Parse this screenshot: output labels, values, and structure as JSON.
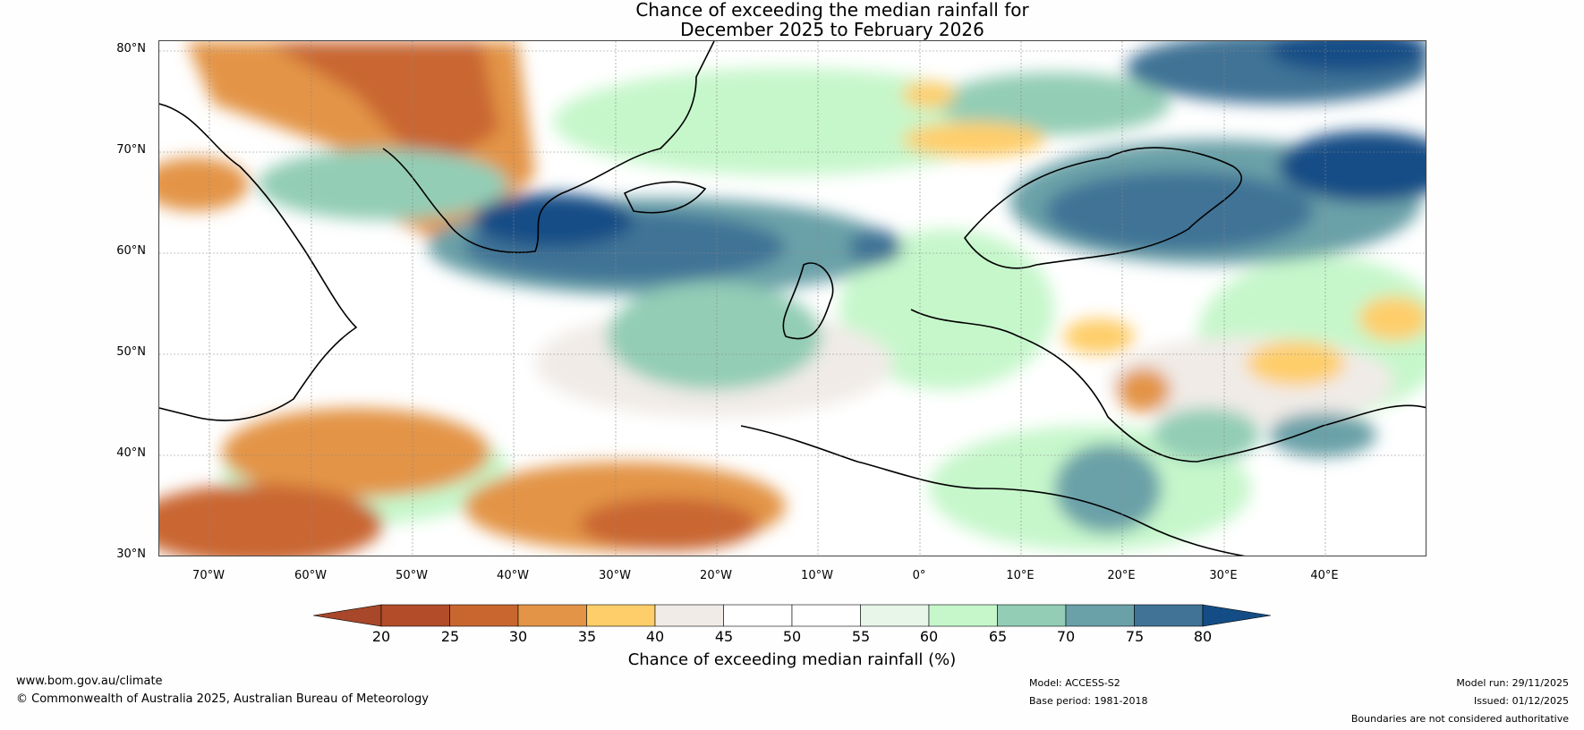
{
  "title": {
    "line1": "Chance of exceeding the median rainfall for",
    "line2": "December 2025 to February 2026"
  },
  "map": {
    "latitude_labels": [
      "80°N",
      "70°N",
      "60°N",
      "50°N",
      "40°N",
      "30°N"
    ],
    "longitude_labels": [
      "70°W",
      "60°W",
      "50°W",
      "40°W",
      "30°W",
      "20°W",
      "10°W",
      "0°",
      "10°E",
      "20°E",
      "30°E",
      "40°E"
    ],
    "extent": {
      "lon_min": -75,
      "lon_max": 50,
      "lat_min": 30,
      "lat_max": 81
    }
  },
  "colorbar": {
    "ticks": [
      "20",
      "25",
      "30",
      "35",
      "40",
      "45",
      "50",
      "55",
      "60",
      "65",
      "70",
      "75",
      "80"
    ],
    "colors": [
      "#a8472a",
      "#b34c28",
      "#c96630",
      "#e39446",
      "#fece6a",
      "#f0ebe7",
      "#ffffff",
      "#ffffff",
      "#e8f6ea",
      "#c6f7cb",
      "#93cdb6",
      "#6aa1a8",
      "#407396",
      "#144d86"
    ],
    "label": "Chance of exceeding median rainfall (%)"
  },
  "footer": {
    "website": "www.bom.gov.au/climate",
    "copyright": "© Commonwealth of Australia 2025, Australian Bureau of Meteorology",
    "model": "Model: ACCESS-S2",
    "base_period": "Base period: 1981-2018",
    "model_run": "Model run: 29/11/2025",
    "issued": "Issued: 01/12/2025",
    "boundaries_note": "Boundaries are not considered authoritative"
  }
}
